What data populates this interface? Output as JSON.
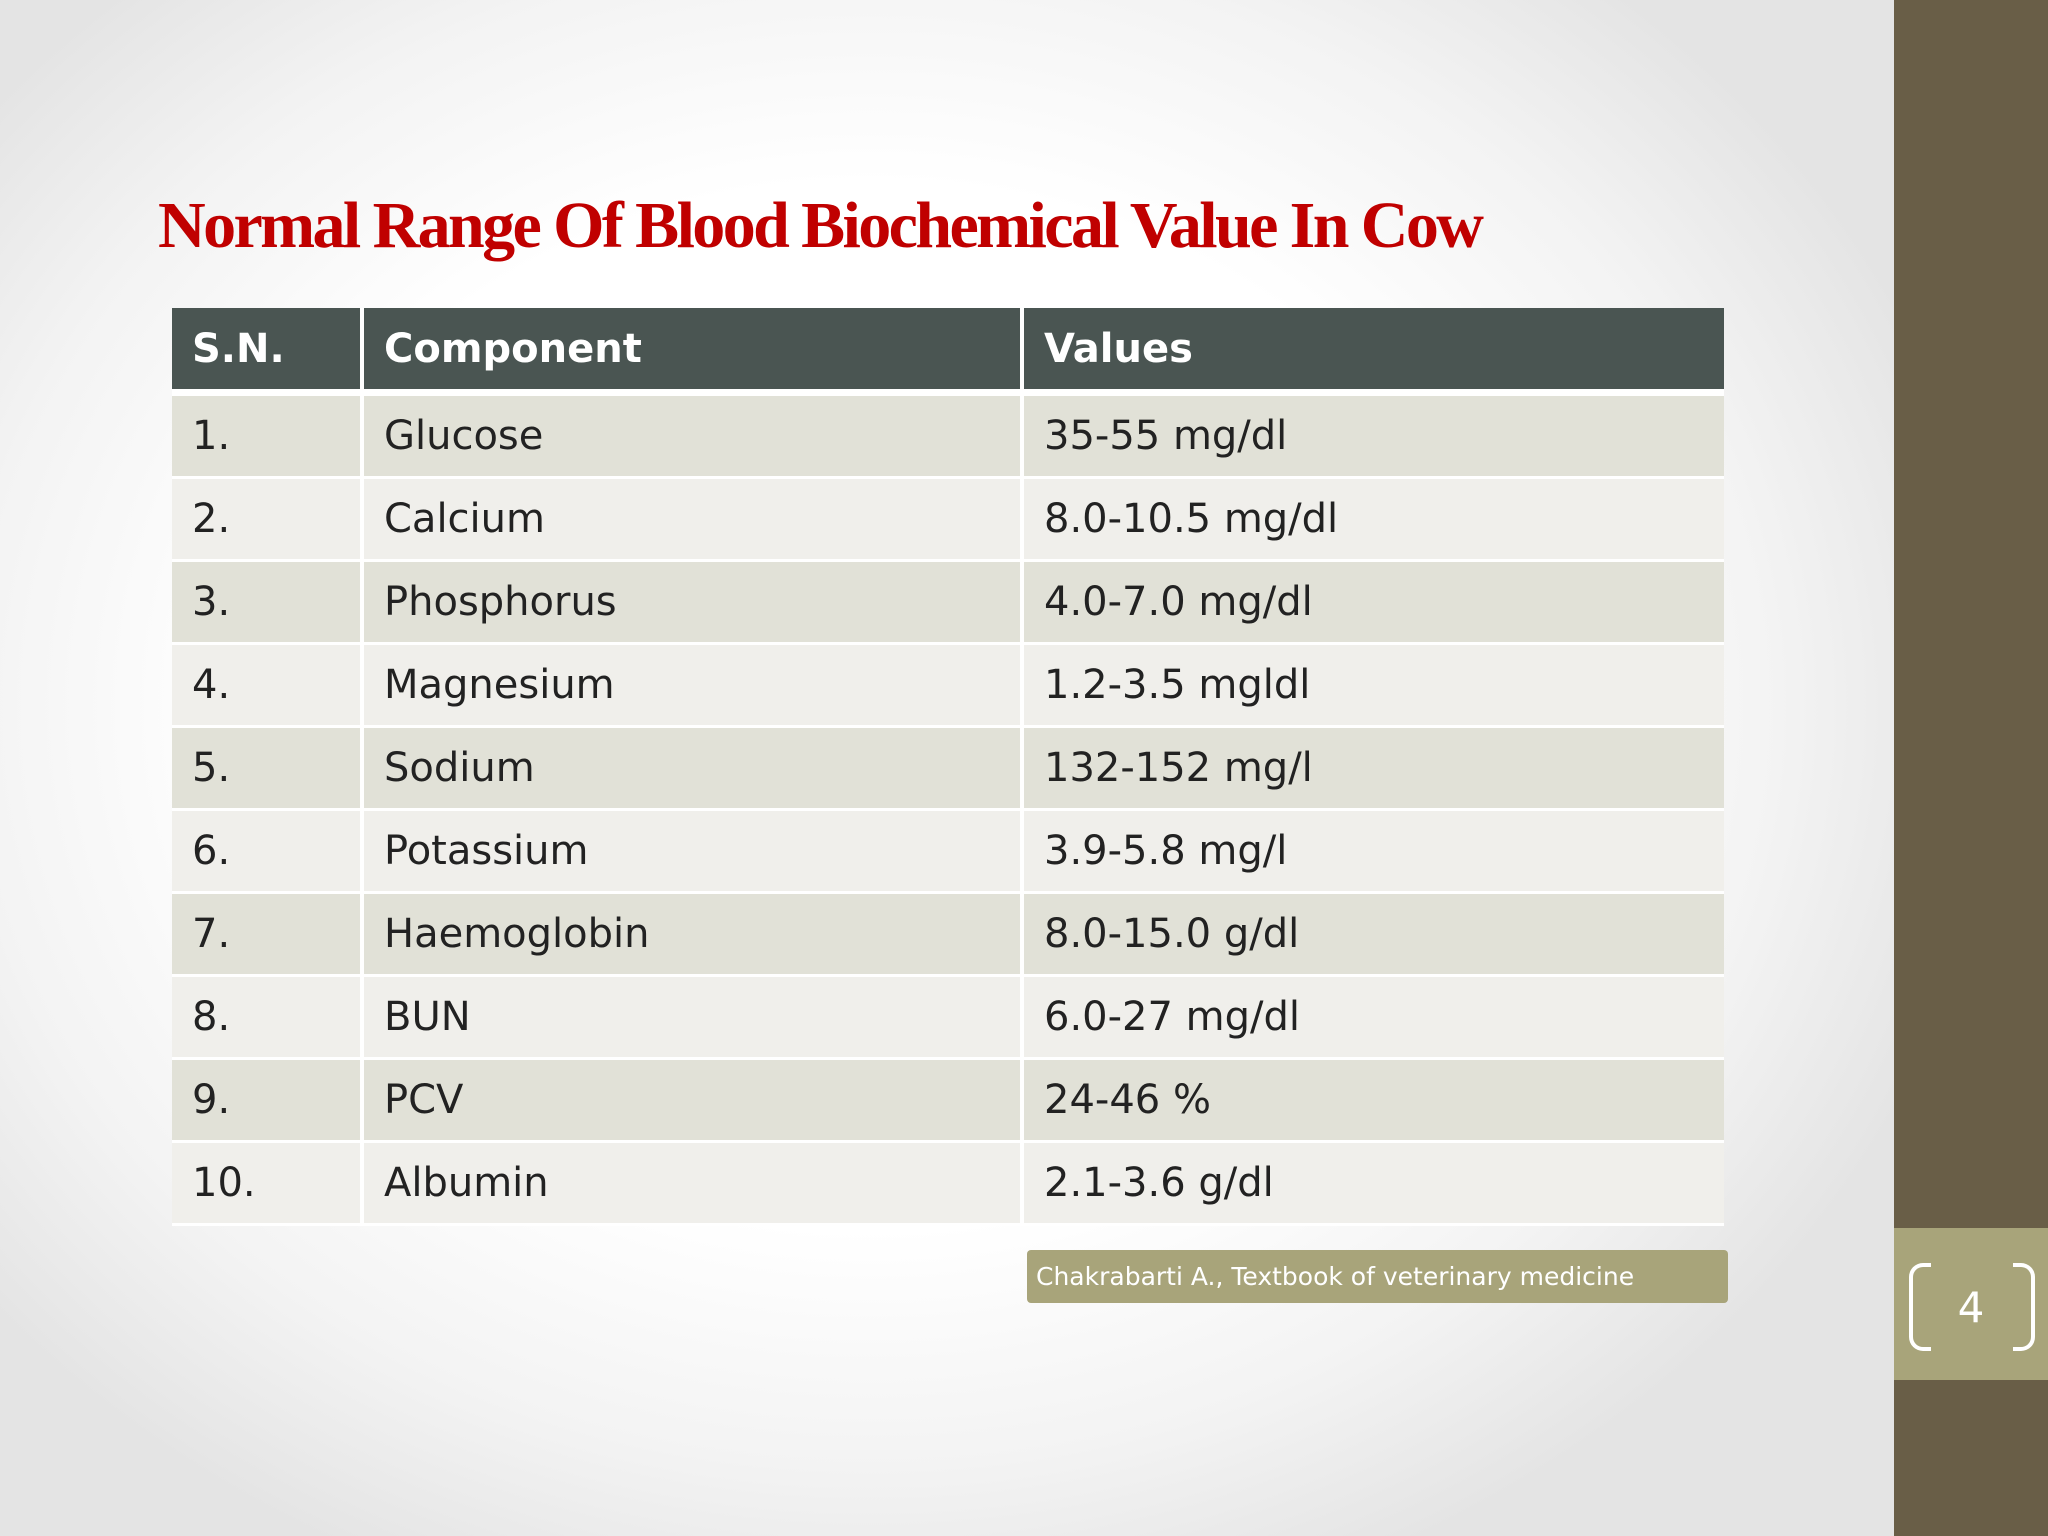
{
  "slide": {
    "title": "Normal Range Of Blood Biochemical Value In Cow",
    "page_number": "4",
    "source": "Chakrabarti A., Textbook of veterinary medicine"
  },
  "table": {
    "headers": [
      "S.N.",
      "Component",
      "Values"
    ],
    "rows": [
      {
        "sn": "1.",
        "component": "Glucose",
        "value": "35-55 mg/dl"
      },
      {
        "sn": "2.",
        "component": "Calcium",
        "value": "8.0-10.5 mg/dl"
      },
      {
        "sn": "3.",
        "component": "Phosphorus",
        "value": "4.0-7.0 mg/dl"
      },
      {
        "sn": "4.",
        "component": "Magnesium",
        "value": "1.2-3.5 mgldl"
      },
      {
        "sn": "5.",
        "component": "Sodium",
        "value": "132-152 mg/l"
      },
      {
        "sn": "6.",
        "component": "Potassium",
        "value": "3.9-5.8 mg/l"
      },
      {
        "sn": "7.",
        "component": "Haemoglobin",
        "value": "8.0-15.0 g/dl"
      },
      {
        "sn": "8.",
        "component": "BUN",
        "value": "6.0-27 mg/dl"
      },
      {
        "sn": "9.",
        "component": "PCV",
        "value": "24-46 %"
      },
      {
        "sn": "10.",
        "component": "Albumin",
        "value": "2.1-3.6 g/dl"
      }
    ]
  },
  "colors": {
    "title": "#c00000",
    "header_bg": "#4a5552",
    "row_odd_bg": "#e1e1d7",
    "row_even_bg": "#f0efeb",
    "side_bar": "#695e47",
    "accent_tab": "#a8a47a"
  }
}
